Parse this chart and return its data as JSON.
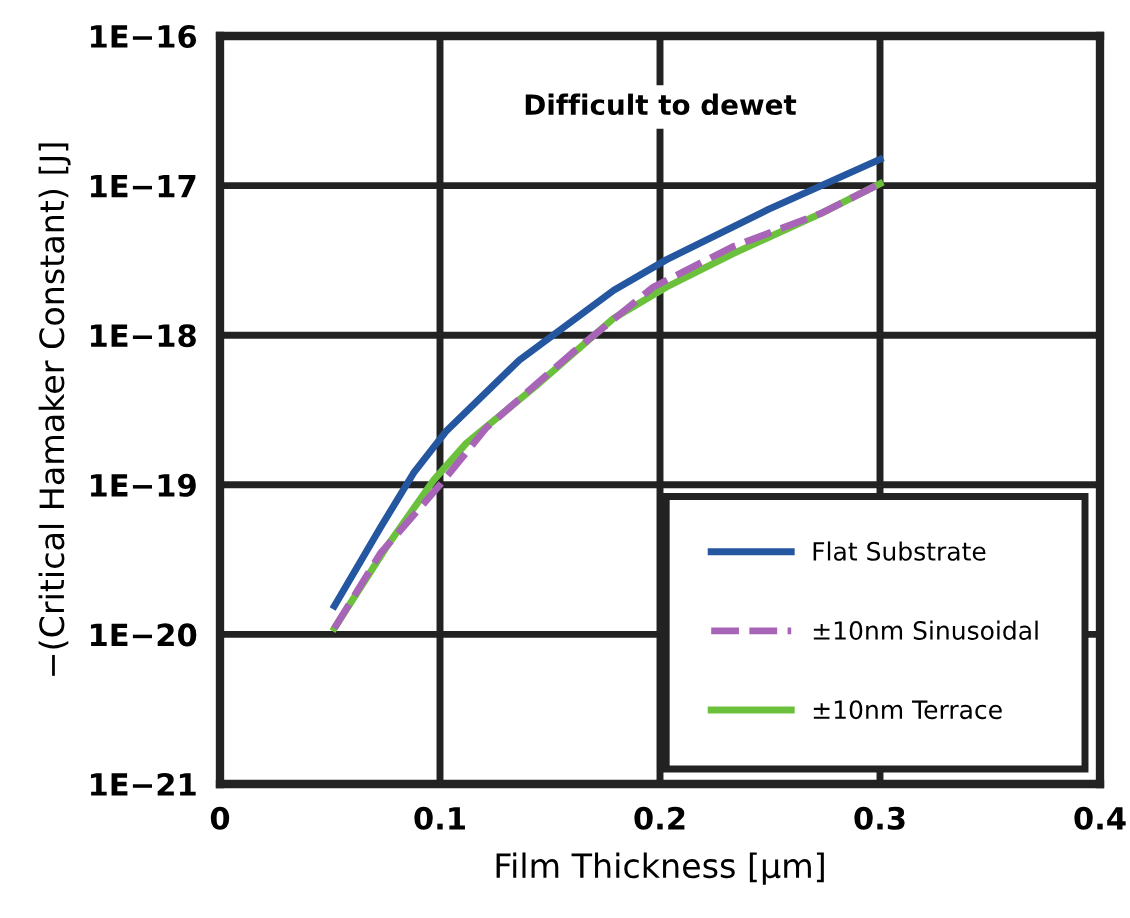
{
  "chart_data": {
    "type": "line",
    "xlabel": "Film Thickness [μm]",
    "ylabel": "−(Critical Hamaker Constant) [J]",
    "annotations": [
      "Difficult to dewet"
    ],
    "log": "y",
    "grid": true,
    "legend": "bottom right",
    "marker": "none",
    "xlim": [
      0,
      0.4
    ],
    "xticks": [
      0,
      0.1,
      0.2,
      0.3,
      0.4
    ],
    "ylim": [
      1e-21,
      1e-16
    ],
    "yticks": [
      {
        "value": 1e-21,
        "label": "1E−21"
      },
      {
        "value": 1e-20,
        "label": "1E−20"
      },
      {
        "value": 1e-19,
        "label": "1E−19"
      },
      {
        "value": 1e-18,
        "label": "1E−18"
      },
      {
        "value": 1e-17,
        "label": "1E−17"
      },
      {
        "value": 1e-16,
        "label": "1E−16"
      }
    ],
    "series": [
      {
        "name": "Flat Substrate",
        "color": "#2457a0",
        "line_style": "solid",
        "x": [
          0.052,
          0.073,
          0.088,
          0.103,
          0.136,
          0.179,
          0.203,
          0.249,
          0.3
        ],
        "values": [
          1.55e-20,
          5.2e-20,
          1.2e-19,
          2.3e-19,
          6.8e-19,
          2e-18,
          3.2e-18,
          6.9e-18,
          1.5e-17
        ]
      },
      {
        "name": "±10nm Sinusoidal",
        "color": "#a865b8",
        "line_style": "dashed",
        "x": [
          0.052,
          0.073,
          0.1,
          0.121,
          0.16,
          0.197,
          0.233,
          0.273,
          0.3
        ],
        "values": [
          1.1e-20,
          3.5e-20,
          1e-19,
          2.4e-19,
          7.6e-19,
          2.1e-18,
          3.9e-18,
          6.5e-18,
          1.03e-17
        ]
      },
      {
        "name": "±10nm Terrace",
        "color": "#6cc13c",
        "line_style": "solid",
        "x": [
          0.052,
          0.076,
          0.097,
          0.112,
          0.143,
          0.179,
          0.203,
          0.233,
          0.273,
          0.3
        ],
        "values": [
          1.1e-20,
          3.9e-20,
          1.07e-19,
          1.9e-19,
          4.5e-19,
          1.3e-18,
          2.1e-18,
          3.5e-18,
          6.5e-18,
          1.03e-17
        ]
      }
    ]
  }
}
